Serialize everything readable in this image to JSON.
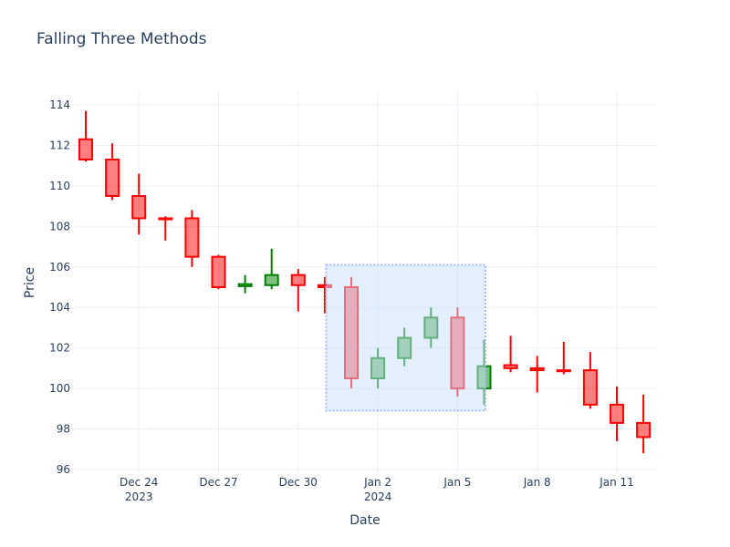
{
  "chart_data": {
    "type": "candlestick",
    "title": "Falling Three Methods",
    "xlabel": "Date",
    "ylabel": "Price",
    "ylim": [
      95.6,
      114.6
    ],
    "y_ticks": [
      96,
      98,
      100,
      102,
      104,
      106,
      108,
      110,
      112,
      114
    ],
    "x_ticks": [
      {
        "label": "Dec 24",
        "sub": "2023",
        "day": 2
      },
      {
        "label": "Dec 27",
        "sub": "",
        "day": 5
      },
      {
        "label": "Dec 30",
        "sub": "",
        "day": 8
      },
      {
        "label": "Jan 2",
        "sub": "2024",
        "day": 11
      },
      {
        "label": "Jan 5",
        "sub": "",
        "day": 14
      },
      {
        "label": "Jan 8",
        "sub": "",
        "day": 17
      },
      {
        "label": "Jan 11",
        "sub": "",
        "day": 20
      }
    ],
    "grid": true,
    "increasing_color": "#008000",
    "decreasing_color": "#ff0000",
    "highlight": {
      "x0_day": 9.05,
      "x1_day": 15.05,
      "y0": 98.9,
      "y1": 106.1,
      "fill": "#c7e0fb",
      "border": "#a9b8ff"
    },
    "candles": [
      {
        "date": "2023-12-22",
        "open": 112.3,
        "high": 113.7,
        "low": 111.2,
        "close": 111.3
      },
      {
        "date": "2023-12-23",
        "open": 111.3,
        "high": 112.1,
        "low": 109.3,
        "close": 109.5
      },
      {
        "date": "2023-12-24",
        "open": 109.5,
        "high": 110.6,
        "low": 107.6,
        "close": 108.4
      },
      {
        "date": "2023-12-25",
        "open": 108.4,
        "high": 108.5,
        "low": 107.3,
        "close": 108.35
      },
      {
        "date": "2023-12-26",
        "open": 108.4,
        "high": 108.8,
        "low": 106.0,
        "close": 106.5
      },
      {
        "date": "2023-12-27",
        "open": 106.5,
        "high": 106.6,
        "low": 104.9,
        "close": 105.0
      },
      {
        "date": "2023-12-28",
        "open": 105.05,
        "high": 105.6,
        "low": 104.7,
        "close": 105.15
      },
      {
        "date": "2023-12-29",
        "open": 105.1,
        "high": 106.9,
        "low": 104.9,
        "close": 105.6
      },
      {
        "date": "2023-12-30",
        "open": 105.6,
        "high": 105.9,
        "low": 103.8,
        "close": 105.1
      },
      {
        "date": "2023-12-31",
        "open": 105.1,
        "high": 105.5,
        "low": 103.7,
        "close": 105.0
      },
      {
        "date": "2024-01-01",
        "open": 105.0,
        "high": 105.5,
        "low": 100.0,
        "close": 100.5
      },
      {
        "date": "2024-01-02",
        "open": 100.5,
        "high": 102.0,
        "low": 100.0,
        "close": 101.5
      },
      {
        "date": "2024-01-03",
        "open": 101.5,
        "high": 103.0,
        "low": 101.1,
        "close": 102.5
      },
      {
        "date": "2024-01-04",
        "open": 102.5,
        "high": 104.0,
        "low": 102.0,
        "close": 103.5
      },
      {
        "date": "2024-01-05",
        "open": 103.5,
        "high": 104.0,
        "low": 99.6,
        "close": 100.0
      },
      {
        "date": "2024-01-06",
        "open": 100.0,
        "high": 102.4,
        "low": 99.2,
        "close": 101.1
      },
      {
        "date": "2024-01-07",
        "open": 101.15,
        "high": 102.6,
        "low": 100.8,
        "close": 101.0
      },
      {
        "date": "2024-01-08",
        "open": 101.0,
        "high": 101.6,
        "low": 99.8,
        "close": 100.9
      },
      {
        "date": "2024-01-09",
        "open": 100.9,
        "high": 102.3,
        "low": 100.7,
        "close": 100.85
      },
      {
        "date": "2024-01-10",
        "open": 100.9,
        "high": 101.8,
        "low": 99.0,
        "close": 99.2
      },
      {
        "date": "2024-01-11",
        "open": 99.2,
        "high": 100.1,
        "low": 97.4,
        "close": 98.3
      },
      {
        "date": "2024-01-12",
        "open": 98.3,
        "high": 99.7,
        "low": 96.8,
        "close": 97.6
      }
    ]
  }
}
